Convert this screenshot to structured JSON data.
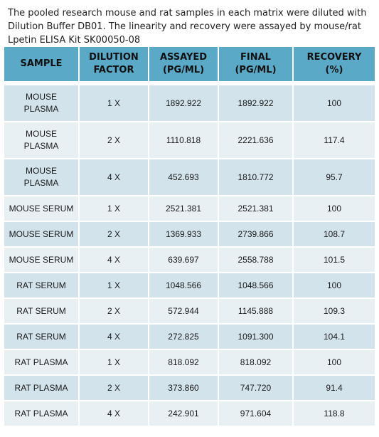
{
  "intro_text": "The pooled research mouse and rat  samples in each matrix were diluted with Dilution Buffer DB01. The linearity and recovery were assayed by mouse/rat Lpetin ELISA Kit  SK00050-08",
  "colors": {
    "header_bg": "#5aa9c7",
    "row_dark": "#d3e3ec",
    "row_light": "#e9f0f4"
  },
  "table": {
    "headers": [
      [
        "SAMPLE"
      ],
      [
        "DILUTION",
        "FACTOR"
      ],
      [
        "ASSAYED",
        "(PG/ML)"
      ],
      [
        "FINAL",
        "(PG/ML)"
      ],
      [
        "RECOVERY",
        "(%)"
      ]
    ],
    "rows": [
      {
        "sample": [
          "MOUSE",
          "PLASMA"
        ],
        "dilution": "1 X",
        "assayed": "1892.922",
        "final": "1892.922",
        "recovery": "100"
      },
      {
        "sample": [
          "MOUSE",
          "PLASMA"
        ],
        "dilution": "2 X",
        "assayed": "1110.818",
        "final": "2221.636",
        "recovery": "117.4"
      },
      {
        "sample": [
          "MOUSE",
          "PLASMA"
        ],
        "dilution": "4 X",
        "assayed": "452.693",
        "final": "1810.772",
        "recovery": "95.7"
      },
      {
        "sample": [
          "MOUSE SERUM"
        ],
        "dilution": "1 X",
        "assayed": "2521.381",
        "final": "2521.381",
        "recovery": "100"
      },
      {
        "sample": [
          "MOUSE SERUM"
        ],
        "dilution": "2 X",
        "assayed": "1369.933",
        "final": "2739.866",
        "recovery": "108.7"
      },
      {
        "sample": [
          "MOUSE SERUM"
        ],
        "dilution": "4 X",
        "assayed": "639.697",
        "final": "2558.788",
        "recovery": "101.5"
      },
      {
        "sample": [
          "RAT  SERUM"
        ],
        "dilution": "1 X",
        "assayed": "1048.566",
        "final": "1048.566",
        "recovery": "100"
      },
      {
        "sample": [
          "RAT  SERUM"
        ],
        "dilution": "2  X",
        "assayed": "572.944",
        "final": "1145.888",
        "recovery": "109.3"
      },
      {
        "sample": [
          "RAT SERUM"
        ],
        "dilution": "4 X",
        "assayed": "272.825",
        "final": "1091.300",
        "recovery": "104.1"
      },
      {
        "sample": [
          "RAT PLASMA"
        ],
        "dilution": "1 X",
        "assayed": "818.092",
        "final": "818.092",
        "recovery": "100"
      },
      {
        "sample": [
          "RAT PLASMA"
        ],
        "dilution": "2 X",
        "assayed": "373.860",
        "final": "747.720",
        "recovery": "91.4"
      },
      {
        "sample": [
          "RAT PLASMA"
        ],
        "dilution": "4 X",
        "assayed": "242.901",
        "final": "971.604",
        "recovery": "118.8"
      }
    ]
  }
}
